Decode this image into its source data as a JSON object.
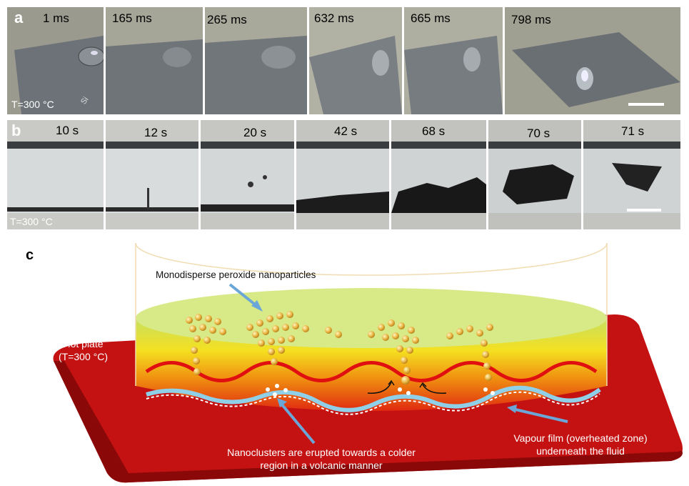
{
  "panel_a": {
    "letter": "a",
    "times": [
      "1 ms",
      "165 ms",
      "265 ms",
      "632 ms",
      "665 ms",
      "798 ms"
    ],
    "temperature": "T=300 °C",
    "substrate": "Si"
  },
  "panel_b": {
    "letter": "b",
    "times": [
      "10 s",
      "12 s",
      "20 s",
      "42 s",
      "68 s",
      "70 s",
      "71 s"
    ],
    "temperature": "T=300 °C"
  },
  "panel_c": {
    "letter": "c",
    "label_nanoparticles": "Monodisperse peroxide nanoparticles",
    "hot_plate_line1": "Hot plate",
    "hot_plate_line2": "(T=300 °C)",
    "nanoclusters_line1": "Nanoclusters are erupted towards a colder",
    "nanoclusters_line2": "region in a volcanic manner",
    "vapour_line1": "Vapour film (overheated zone)",
    "vapour_line2": "underneath the fluid"
  },
  "colors": {
    "hot_plate": "#cc1010",
    "fluid_top": "#c8e060",
    "fluid_bottom": "#e83010",
    "arrow": "#6aa6d8"
  }
}
